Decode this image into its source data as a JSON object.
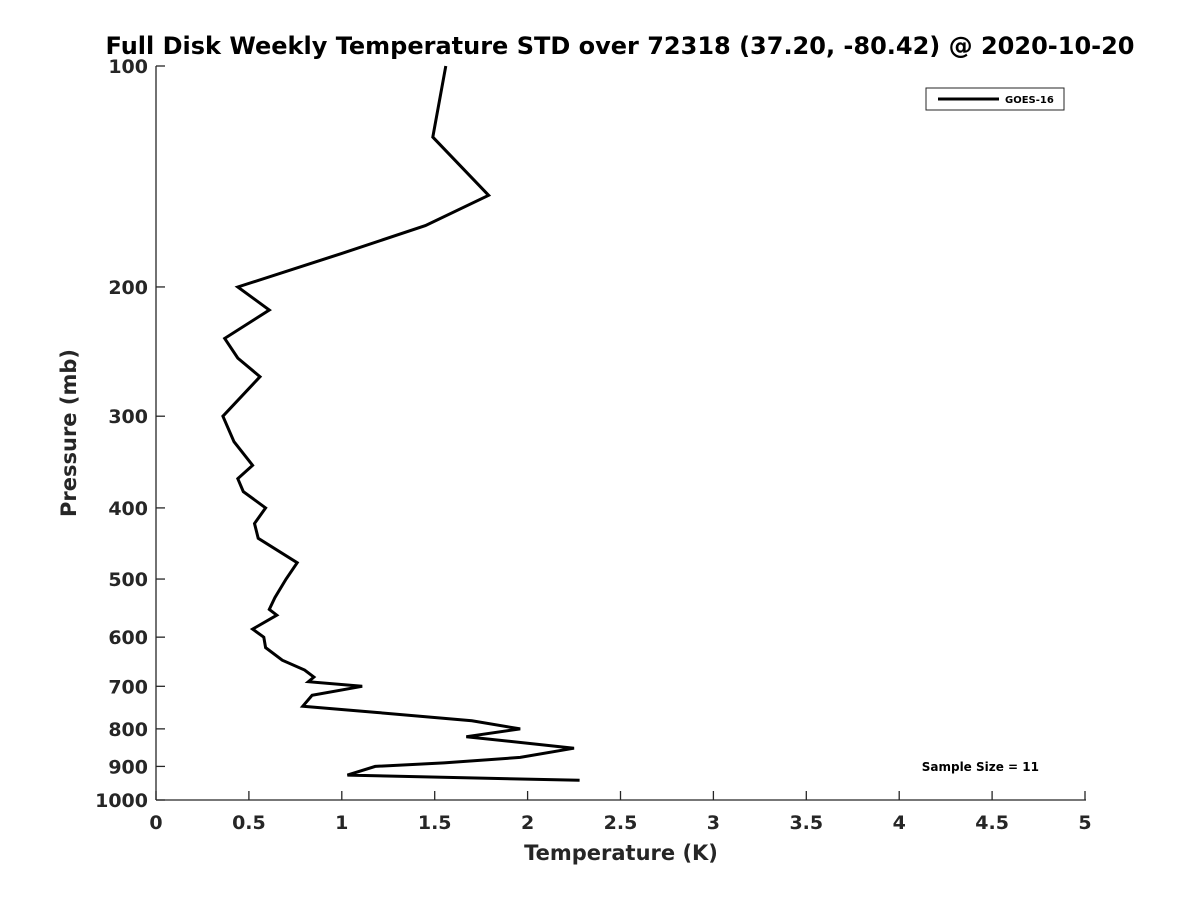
{
  "chart_data": {
    "type": "line",
    "title": "Full Disk Weekly Temperature STD over 72318 (37.20, -80.42) @ 2020-10-20",
    "xlabel": "Temperature (K)",
    "ylabel": "Pressure (mb)",
    "xlim": [
      0,
      5
    ],
    "ylim": [
      100,
      1000
    ],
    "y_scale": "log",
    "y_reversed": true,
    "grid": false,
    "legend_position": "top-right",
    "x_ticks": [
      "0",
      "0.5",
      "1",
      "1.5",
      "2",
      "2.5",
      "3",
      "3.5",
      "4",
      "4.5",
      "5"
    ],
    "y_ticks": [
      "100",
      "200",
      "300",
      "400",
      "500",
      "600",
      "700",
      "800",
      "900",
      "1000"
    ],
    "annotation": "Sample Size = 11",
    "series": [
      {
        "name": "GOES-16",
        "color": "#000000",
        "points": [
          [
            1.56,
            100
          ],
          [
            1.49,
            125
          ],
          [
            1.79,
            150
          ],
          [
            1.45,
            165
          ],
          [
            1.0,
            180
          ],
          [
            0.44,
            200
          ],
          [
            0.61,
            215
          ],
          [
            0.37,
            235
          ],
          [
            0.44,
            250
          ],
          [
            0.56,
            265
          ],
          [
            0.36,
            300
          ],
          [
            0.42,
            325
          ],
          [
            0.52,
            350
          ],
          [
            0.44,
            365
          ],
          [
            0.47,
            380
          ],
          [
            0.59,
            400
          ],
          [
            0.53,
            420
          ],
          [
            0.55,
            440
          ],
          [
            0.76,
            475
          ],
          [
            0.7,
            500
          ],
          [
            0.64,
            530
          ],
          [
            0.61,
            550
          ],
          [
            0.65,
            560
          ],
          [
            0.52,
            585
          ],
          [
            0.58,
            600
          ],
          [
            0.59,
            620
          ],
          [
            0.68,
            645
          ],
          [
            0.8,
            665
          ],
          [
            0.85,
            680
          ],
          [
            0.82,
            690
          ],
          [
            1.11,
            700
          ],
          [
            0.84,
            720
          ],
          [
            0.79,
            745
          ],
          [
            1.19,
            760
          ],
          [
            1.7,
            780
          ],
          [
            1.96,
            800
          ],
          [
            1.67,
            820
          ],
          [
            2.25,
            850
          ],
          [
            1.96,
            875
          ],
          [
            1.55,
            890
          ],
          [
            1.18,
            900
          ],
          [
            1.03,
            925
          ],
          [
            2.28,
            940
          ]
        ]
      }
    ]
  }
}
